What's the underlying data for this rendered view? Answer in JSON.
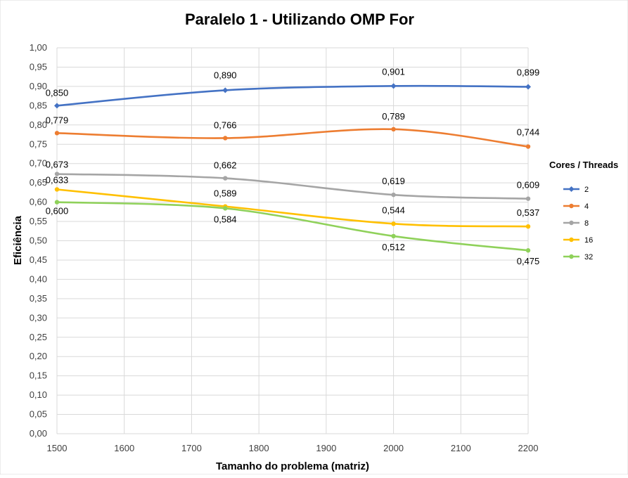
{
  "chart_data": {
    "type": "line",
    "title": "Paralelo 1 - Utilizando OMP For",
    "xlabel": "Tamanho do problema (matriz)",
    "ylabel": "Eficiência",
    "xlim": [
      1500,
      2200
    ],
    "ylim": [
      0,
      1
    ],
    "x_ticks": [
      "1500",
      "1600",
      "1700",
      "1800",
      "1900",
      "2000",
      "2100",
      "2200"
    ],
    "y_ticks": [
      "0,00",
      "0,05",
      "0,10",
      "0,15",
      "0,20",
      "0,25",
      "0,30",
      "0,35",
      "0,40",
      "0,45",
      "0,50",
      "0,55",
      "0,60",
      "0,65",
      "0,70",
      "0,75",
      "0,80",
      "0,85",
      "0,90",
      "0,95",
      "1,00"
    ],
    "grid": true,
    "smooth": true,
    "legend_title": "Cores / Threads",
    "legend_position": "right",
    "x": [
      1500,
      1750,
      2000,
      2200
    ],
    "series": [
      {
        "name": "2",
        "color": "#4472C4",
        "marker": "diamond",
        "values": [
          0.85,
          0.89,
          0.901,
          0.899
        ],
        "labels": [
          "0,850",
          "0,890",
          "0,901",
          "0,899"
        ]
      },
      {
        "name": "4",
        "color": "#ED7D31",
        "marker": "circle",
        "values": [
          0.779,
          0.766,
          0.789,
          0.744
        ],
        "labels": [
          "0,779",
          "0,766",
          "0,789",
          "0,744"
        ]
      },
      {
        "name": "8",
        "color": "#A5A5A5",
        "marker": "circle",
        "values": [
          0.673,
          0.662,
          0.619,
          0.609
        ],
        "labels": [
          "0,673",
          "0,662",
          "0,619",
          "0,609"
        ]
      },
      {
        "name": "16",
        "color": "#FFC000",
        "marker": "circle",
        "values": [
          0.633,
          0.589,
          0.544,
          0.537
        ],
        "labels": [
          "0,633",
          "0,589",
          "0,544",
          "0,537"
        ]
      },
      {
        "name": "32",
        "color": "#8FD15A",
        "marker": "circle",
        "values": [
          0.6,
          0.584,
          0.512,
          0.475
        ],
        "labels": [
          "0,600",
          "0,584",
          "0,512",
          "0,475"
        ]
      }
    ]
  }
}
